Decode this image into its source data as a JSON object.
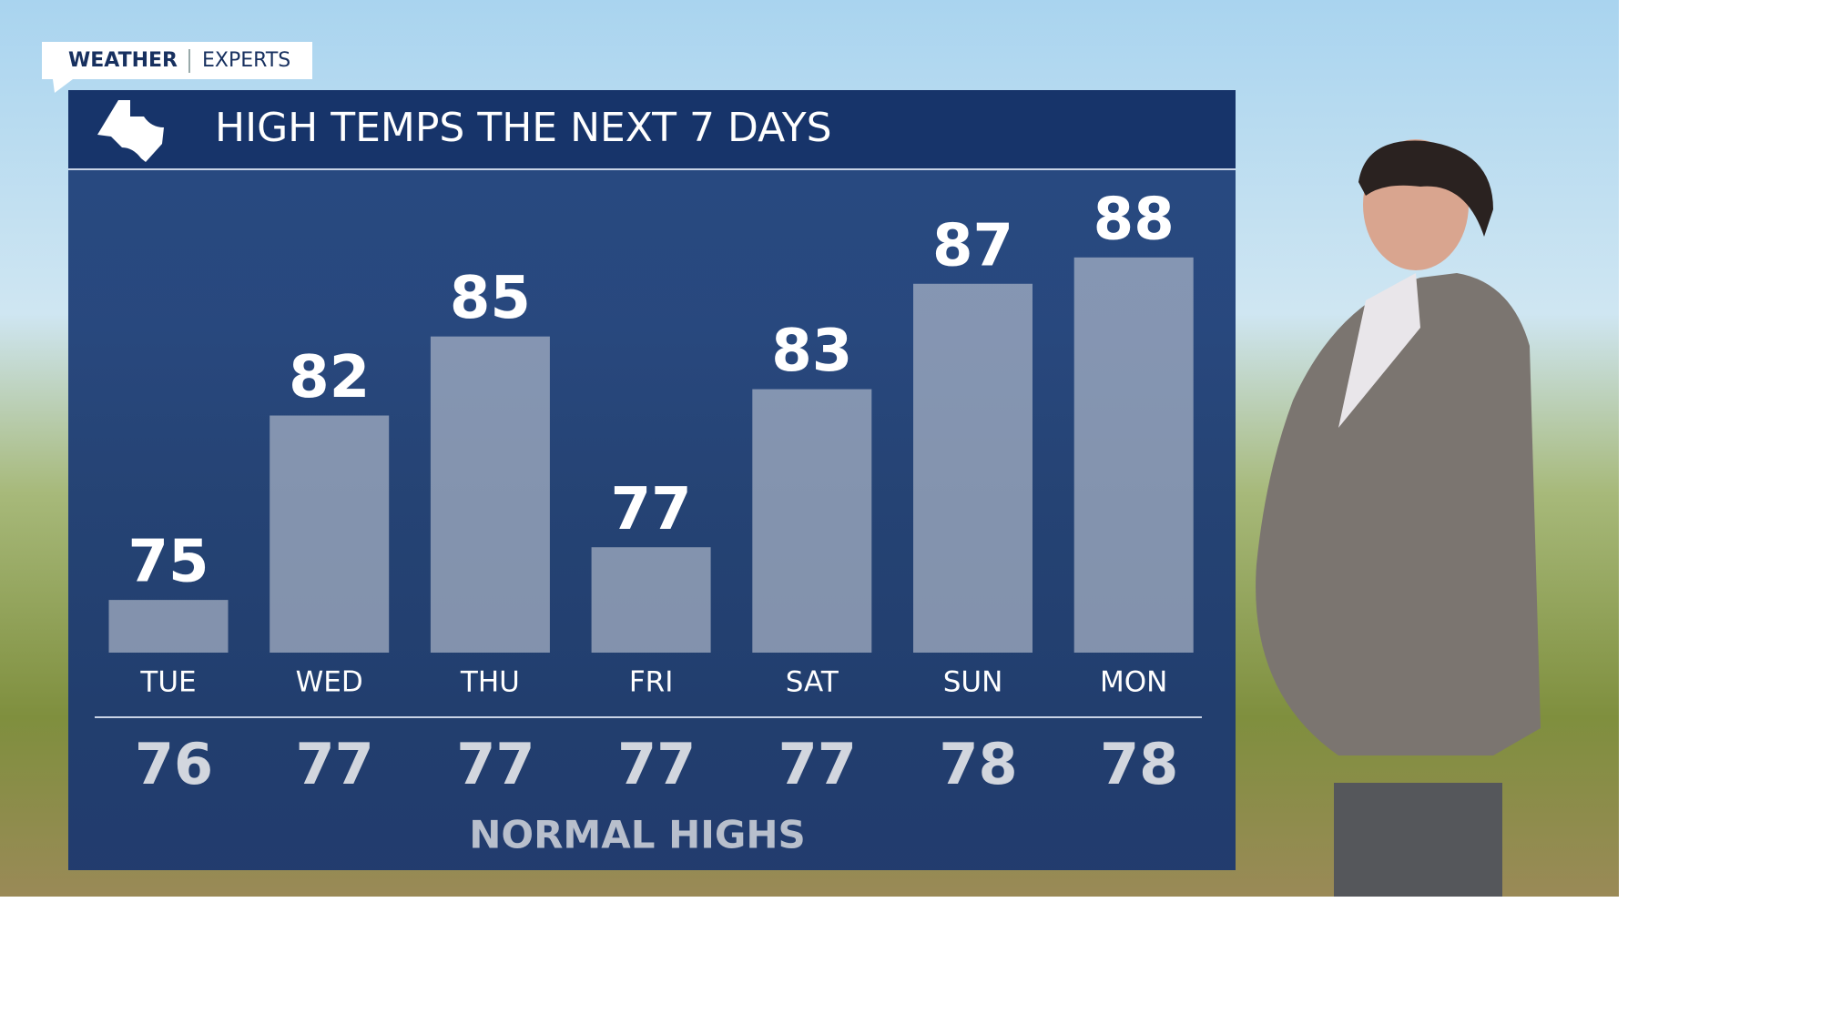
{
  "brand": {
    "name": "WEATHER",
    "tagline": "EXPERTS"
  },
  "chart_data": {
    "type": "bar",
    "title": "HIGH TEMPS THE NEXT 7 DAYS",
    "categories": [
      "TUE",
      "WED",
      "THU",
      "FRI",
      "SAT",
      "SUN",
      "MON"
    ],
    "values": [
      75,
      82,
      85,
      77,
      83,
      87,
      88
    ],
    "color": "#c3c9d6",
    "ylim": [
      73,
      91
    ],
    "normals": [
      76,
      77,
      77,
      77,
      77,
      78,
      78
    ],
    "normals_label": "NORMAL HIGHS"
  }
}
